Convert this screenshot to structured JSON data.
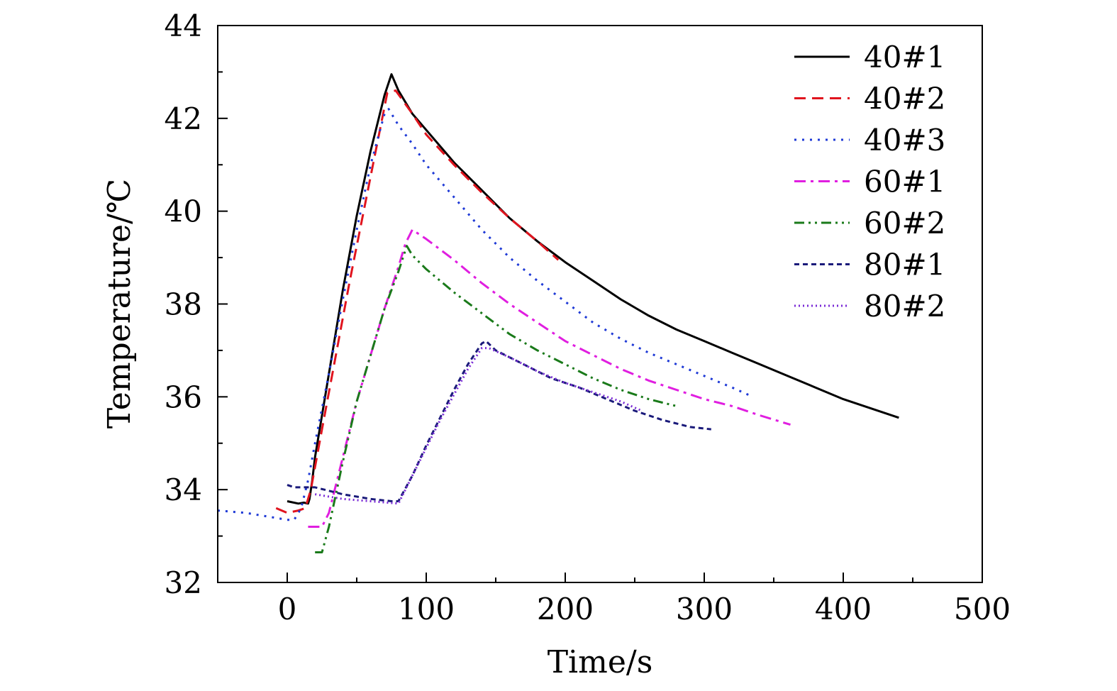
{
  "chart_data": {
    "type": "line",
    "xlabel": "Time/s",
    "ylabel": "Temperature/℃",
    "xlim": [
      -50,
      500
    ],
    "ylim": [
      32,
      44
    ],
    "xticks": [
      0,
      100,
      200,
      300,
      400,
      500
    ],
    "xtick_labels": [
      "0",
      "100",
      "200",
      "300",
      "400",
      "500"
    ],
    "yticks": [
      32,
      34,
      36,
      38,
      40,
      42,
      44
    ],
    "ytick_labels": [
      "32",
      "34",
      "36",
      "38",
      "40",
      "42",
      "44"
    ],
    "grid": false,
    "legend_position": "top-right",
    "series": [
      {
        "name": "40#1",
        "color": "#000000",
        "dash": "solid",
        "x": [
          0,
          8,
          12,
          15,
          16,
          18,
          20,
          25,
          30,
          40,
          50,
          60,
          70,
          75,
          80,
          90,
          100,
          120,
          140,
          160,
          180,
          200,
          220,
          240,
          260,
          280,
          300,
          320,
          340,
          360,
          380,
          400,
          420,
          440
        ],
        "y": [
          33.75,
          33.7,
          33.72,
          33.7,
          33.8,
          34.2,
          34.7,
          35.6,
          36.5,
          38.3,
          39.9,
          41.3,
          42.5,
          42.95,
          42.6,
          42.1,
          41.75,
          41.05,
          40.45,
          39.85,
          39.35,
          38.9,
          38.5,
          38.1,
          37.75,
          37.45,
          37.2,
          36.95,
          36.7,
          36.45,
          36.2,
          35.95,
          35.75,
          35.55
        ]
      },
      {
        "name": "40#2",
        "color": "#e0141e",
        "dash": "dashed",
        "x": [
          -8,
          0,
          8,
          13,
          17,
          25,
          35,
          45,
          55,
          65,
          72,
          78,
          90,
          100,
          120,
          140,
          160,
          180,
          195
        ],
        "y": [
          33.6,
          33.5,
          33.55,
          33.6,
          34.0,
          35.3,
          36.9,
          38.5,
          40.0,
          41.5,
          42.55,
          42.6,
          42.1,
          41.65,
          41.0,
          40.4,
          39.85,
          39.35,
          38.95
        ]
      },
      {
        "name": "40#3",
        "color": "#1f3ad6",
        "dash": "dotted",
        "x": [
          -50,
          -30,
          -10,
          0,
          5,
          10,
          15,
          20,
          30,
          40,
          50,
          60,
          70,
          73,
          80,
          90,
          100,
          120,
          140,
          160,
          180,
          200,
          220,
          240,
          260,
          280,
          300,
          320,
          335
        ],
        "y": [
          33.55,
          33.5,
          33.4,
          33.35,
          33.35,
          33.6,
          34.2,
          35.0,
          36.5,
          38.1,
          39.6,
          41.0,
          42.1,
          42.2,
          41.85,
          41.45,
          41.0,
          40.3,
          39.6,
          39.0,
          38.5,
          38.05,
          37.6,
          37.25,
          36.95,
          36.7,
          36.45,
          36.2,
          36.0
        ]
      },
      {
        "name": "60#1",
        "color": "#e01ee0",
        "dash": "dashdot",
        "x": [
          15,
          25,
          30,
          40,
          50,
          60,
          70,
          80,
          85,
          90,
          100,
          120,
          140,
          160,
          180,
          200,
          220,
          240,
          260,
          280,
          300,
          320,
          340,
          362
        ],
        "y": [
          33.2,
          33.2,
          33.5,
          34.7,
          35.9,
          36.9,
          37.9,
          38.8,
          39.3,
          39.6,
          39.4,
          38.95,
          38.45,
          38.0,
          37.6,
          37.2,
          36.9,
          36.6,
          36.35,
          36.15,
          35.95,
          35.8,
          35.6,
          35.4
        ]
      },
      {
        "name": "60#2",
        "color": "#1a7a1a",
        "dash": "dashdotdot",
        "x": [
          20,
          25,
          30,
          40,
          50,
          60,
          70,
          80,
          86,
          90,
          100,
          120,
          140,
          160,
          180,
          200,
          220,
          240,
          260,
          280
        ],
        "y": [
          32.65,
          32.65,
          33.2,
          34.6,
          35.9,
          36.9,
          37.9,
          38.7,
          39.25,
          39.05,
          38.75,
          38.25,
          37.8,
          37.35,
          37.0,
          36.7,
          36.4,
          36.15,
          35.95,
          35.8
        ]
      },
      {
        "name": "80#1",
        "color": "#1a1a7a",
        "dash": "shortdash",
        "x": [
          0,
          5,
          20,
          40,
          60,
          75,
          80,
          90,
          100,
          110,
          120,
          130,
          140,
          143,
          150,
          170,
          190,
          210,
          230,
          250,
          270,
          290,
          305
        ],
        "y": [
          34.1,
          34.05,
          34.05,
          33.9,
          33.8,
          33.75,
          33.75,
          34.3,
          34.95,
          35.55,
          36.15,
          36.7,
          37.15,
          37.2,
          37.0,
          36.7,
          36.4,
          36.2,
          35.95,
          35.7,
          35.5,
          35.35,
          35.3
        ]
      },
      {
        "name": "80#2",
        "color": "#7a2ad6",
        "dash": "densedot",
        "x": [
          20,
          40,
          60,
          80,
          90,
          100,
          110,
          120,
          130,
          140,
          145,
          160,
          180,
          200,
          220,
          240,
          255
        ],
        "y": [
          33.9,
          33.8,
          33.75,
          33.7,
          34.3,
          34.9,
          35.5,
          36.05,
          36.6,
          37.05,
          37.05,
          36.85,
          36.55,
          36.3,
          36.1,
          35.9,
          35.7
        ]
      }
    ]
  }
}
